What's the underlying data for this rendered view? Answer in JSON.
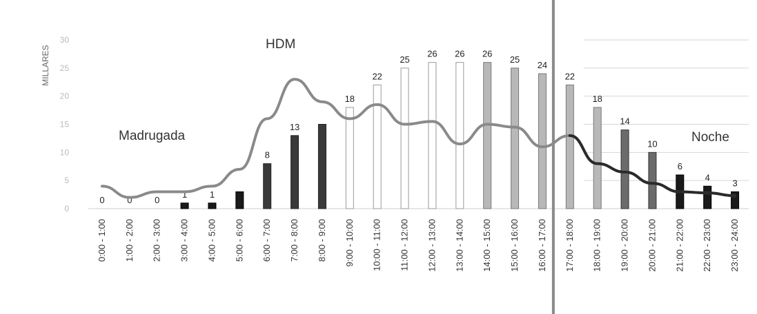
{
  "chart_data": {
    "type": "bar",
    "ylabel": "MILLARES",
    "ylim": [
      0,
      30
    ],
    "yticks": [
      "0",
      "5",
      "10",
      "15",
      "20",
      "25",
      "30"
    ],
    "categories": [
      "0:00 - 1:00",
      "1:00 - 2:00",
      "2:00 - 3:00",
      "3:00 - 4:00",
      "4:00 - 5:00",
      "5:00 - 6:00",
      "6:00 - 7:00",
      "7:00 - 8:00",
      "8:00 - 9:00",
      "9:00 - 10:00",
      "10:00 - 11:00",
      "11:00 - 12:00",
      "12:00 - 13:00",
      "13:00 - 14:00",
      "14:00 - 15:00",
      "15:00 - 16:00",
      "16:00 - 17:00",
      "17:00 - 18:00",
      "18:00 - 19:00",
      "19:00 - 20:00",
      "20:00 - 21:00",
      "21:00 - 22:00",
      "22:00 - 23:00",
      "23:00 - 24:00"
    ],
    "values": [
      0,
      0,
      0,
      1,
      1,
      3,
      8,
      13,
      15,
      18,
      22,
      25,
      26,
      26,
      26,
      25,
      24,
      22,
      18,
      14,
      10,
      6,
      4,
      3
    ],
    "bar_labels": [
      "0",
      "0",
      "0",
      "1",
      "1",
      "",
      "8",
      "13",
      "",
      "18",
      "22",
      "25",
      "26",
      "26",
      "26",
      "25",
      "24",
      "22",
      "18",
      "14",
      "10",
      "6",
      "4",
      "3"
    ],
    "line_values": [
      4,
      2,
      3,
      3,
      4,
      7,
      16,
      23,
      19,
      16,
      18.5,
      15,
      15.5,
      11.5,
      15,
      14.5,
      11,
      13,
      8,
      6.5,
      4.5,
      3,
      2.8,
      2.3
    ],
    "annotations": {
      "madrugada": "Madrugada",
      "hdm": "HDM",
      "noche": "Noche"
    },
    "colors": {
      "line": "#2a2a2a",
      "bar_dark": "#1a1a1a",
      "bar_mid": "#6b6b6b",
      "bar_light": "#b8b8b8",
      "divider": "#8a8a8a"
    }
  }
}
